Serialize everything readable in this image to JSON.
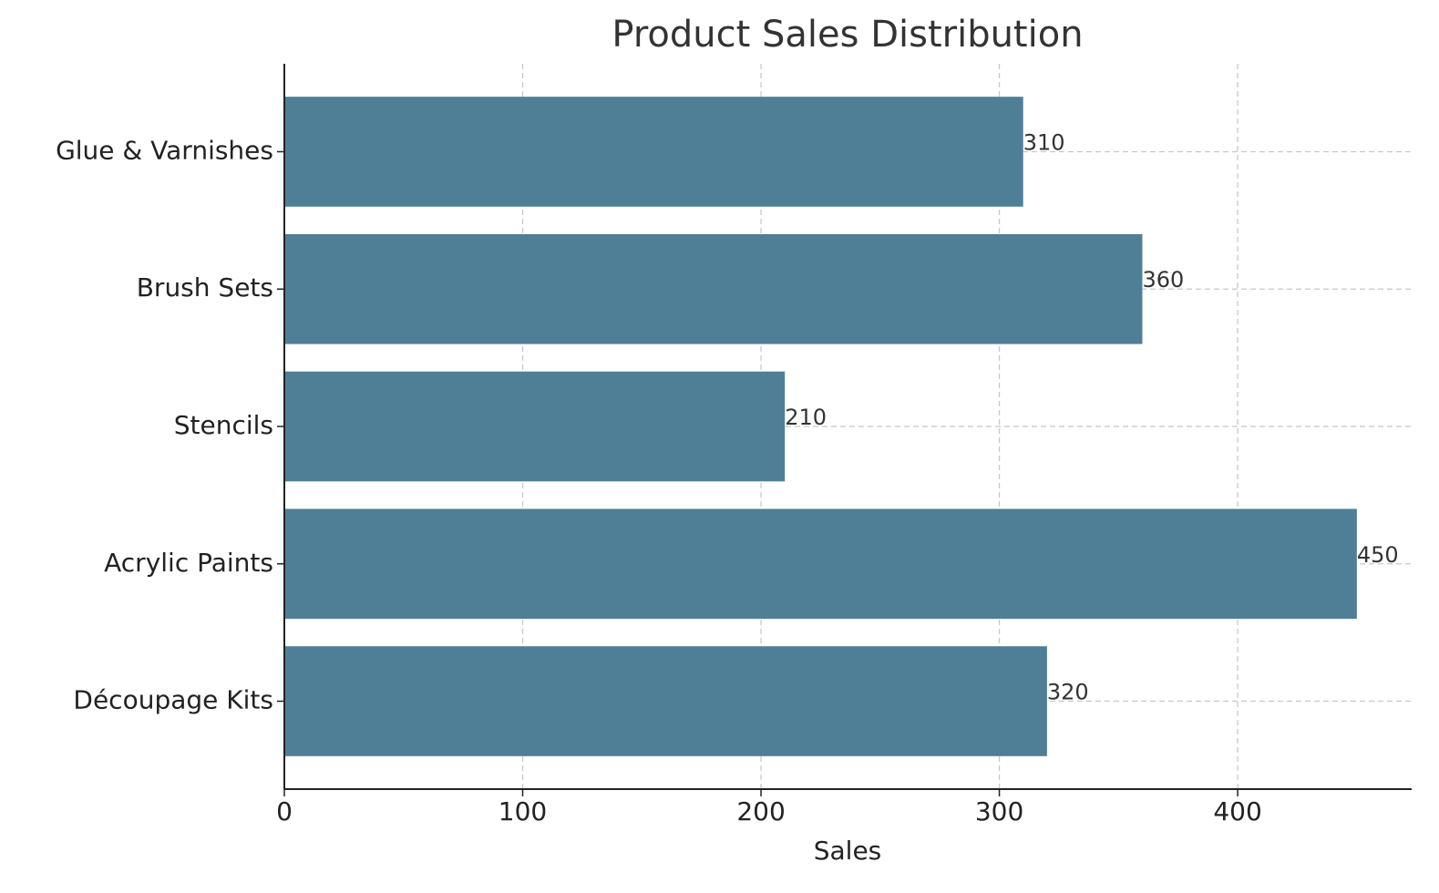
{
  "chart_data": {
    "type": "bar",
    "orientation": "horizontal",
    "title": "Product Sales Distribution",
    "x_label": "Sales",
    "categories": [
      "Découpage Kits",
      "Acrylic Paints",
      "Stencils",
      "Brush Sets",
      "Glue & Varnishes"
    ],
    "values": [
      320,
      450,
      210,
      360,
      310
    ],
    "color": "#4f7f96",
    "xlim": [
      0,
      473
    ],
    "xticks": [
      0,
      100,
      200,
      300,
      400
    ],
    "grid": true
  }
}
